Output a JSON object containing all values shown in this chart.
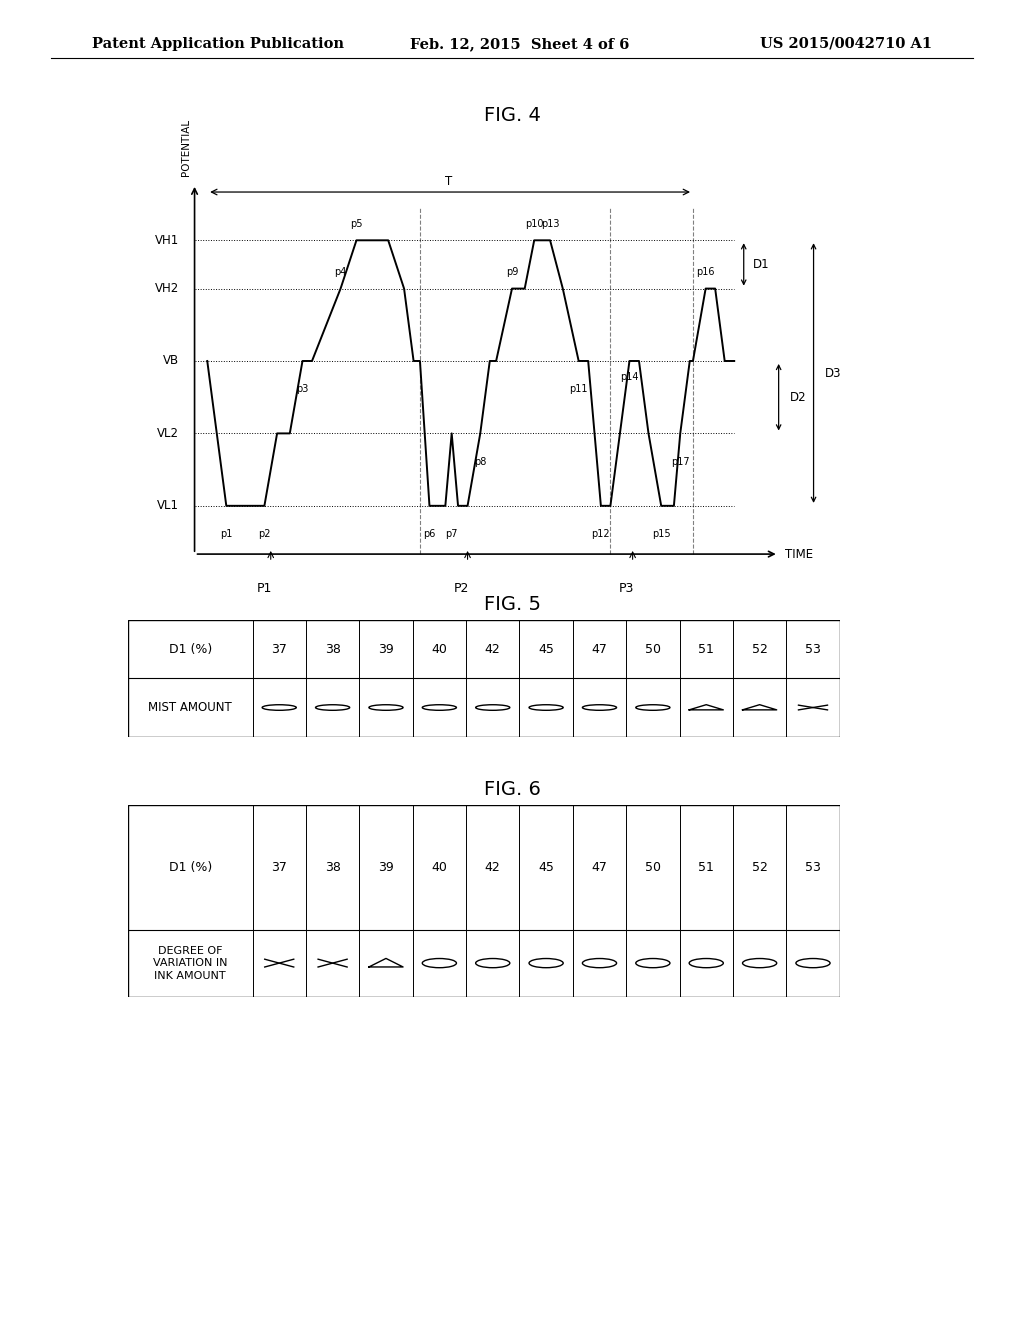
{
  "header_left": "Patent Application Publication",
  "header_mid": "Feb. 12, 2015  Sheet 4 of 6",
  "header_right": "US 2015/0042710 A1",
  "fig4_title": "FIG. 4",
  "fig5_title": "FIG. 5",
  "fig6_title": "FIG. 6",
  "ylabel": "POTENTIAL",
  "xlabel": "TIME",
  "T_label": "T",
  "VH1": 0.88,
  "VH2": 0.76,
  "VB": 0.58,
  "VL2": 0.4,
  "VL1": 0.22,
  "fig5_d1_values": [
    "37",
    "38",
    "39",
    "40",
    "42",
    "45",
    "47",
    "50",
    "51",
    "52",
    "53"
  ],
  "fig5_mist_amount": [
    "O",
    "O",
    "O",
    "O",
    "O",
    "O",
    "O",
    "O",
    "T",
    "T",
    "X"
  ],
  "fig6_d1_values": [
    "37",
    "38",
    "39",
    "40",
    "42",
    "45",
    "47",
    "50",
    "51",
    "52",
    "53"
  ],
  "fig6_variation": [
    "X",
    "X",
    "T",
    "O",
    "O",
    "O",
    "O",
    "O",
    "O",
    "O",
    "O"
  ],
  "fig5_row1_label": "D1 (%)",
  "fig5_row2_label": "MIST AMOUNT",
  "fig6_row1_label": "D1 (%)",
  "fig6_row2_label": "DEGREE OF\nVARIATION IN\nINK AMOUNT"
}
